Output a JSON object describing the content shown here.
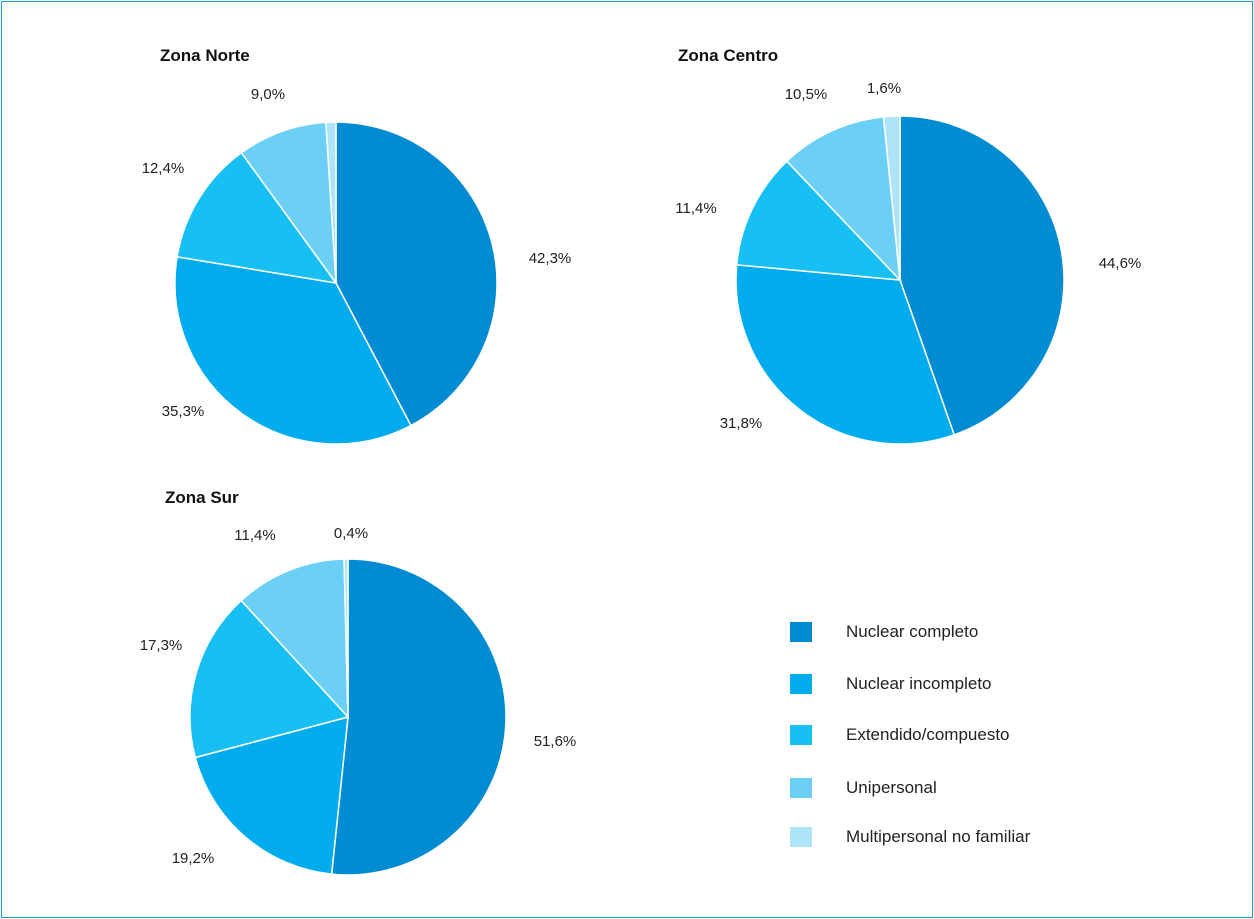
{
  "colors": {
    "frame": "#1c9ad6",
    "categories": [
      "#008bd2",
      "#00aced",
      "#17bff2",
      "#6cd0f6",
      "#aee4fa"
    ]
  },
  "legend": {
    "items": [
      {
        "label": "Nuclear completo",
        "color": "#008bd2"
      },
      {
        "label": "Nuclear incompleto",
        "color": "#00aced"
      },
      {
        "label": "Extendido/compuesto",
        "color": "#17bff2"
      },
      {
        "label": "Unipersonal",
        "color": "#6cd0f6"
      },
      {
        "label": "Multipersonal no familiar",
        "color": "#aee4fa"
      }
    ]
  },
  "chart_data": [
    {
      "type": "pie",
      "title": "Zona Norte",
      "categories": [
        "Nuclear completo",
        "Nuclear incompleto",
        "Extendido/compuesto",
        "Unipersonal",
        "Multipersonal no familiar"
      ],
      "values": [
        42.3,
        35.3,
        12.4,
        9.0,
        1.0
      ],
      "labels": [
        "42,3%",
        "35,3%",
        "12,4%",
        "9,0%",
        ""
      ]
    },
    {
      "type": "pie",
      "title": "Zona Centro",
      "categories": [
        "Nuclear completo",
        "Nuclear incompleto",
        "Extendido/compuesto",
        "Unipersonal",
        "Multipersonal no familiar"
      ],
      "values": [
        44.6,
        31.8,
        11.4,
        10.5,
        1.6
      ],
      "labels": [
        "44,6%",
        "31,8%",
        "11,4%",
        "10,5%",
        "1,6%"
      ]
    },
    {
      "type": "pie",
      "title": "Zona Sur",
      "categories": [
        "Nuclear completo",
        "Nuclear incompleto",
        "Extendido/compuesto",
        "Unipersonal",
        "Multipersonal no familiar"
      ],
      "values": [
        51.6,
        19.2,
        17.3,
        11.4,
        0.4
      ],
      "labels": [
        "51,6%",
        "19,2%",
        "17,3%",
        "11,4%",
        "0,4%"
      ]
    }
  ]
}
